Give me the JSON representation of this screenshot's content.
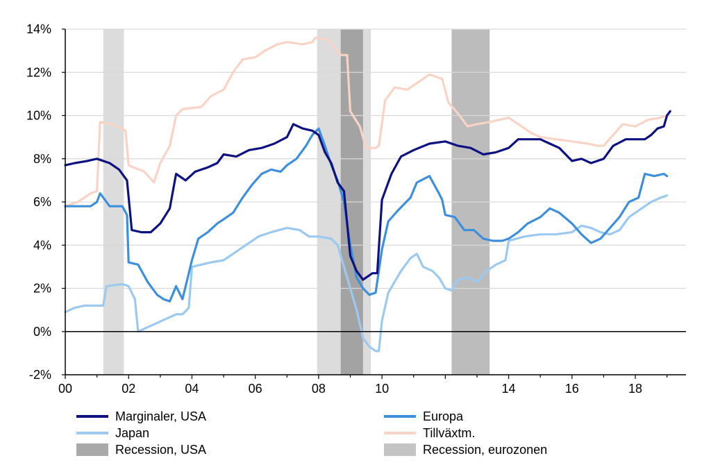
{
  "chart_data": {
    "type": "line",
    "title": "",
    "xlabel": "",
    "ylabel": "",
    "xlim": [
      2000,
      2019.6
    ],
    "ylim": [
      -2,
      14
    ],
    "x_ticks": [
      {
        "value": 2000,
        "label": "00"
      },
      {
        "value": 2002,
        "label": "02"
      },
      {
        "value": 2004,
        "label": "04"
      },
      {
        "value": 2006,
        "label": "06"
      },
      {
        "value": 2008,
        "label": "08"
      },
      {
        "value": 2010,
        "label": "10"
      },
      {
        "value": 2014,
        "label": "14"
      },
      {
        "value": 2016,
        "label": "16"
      },
      {
        "value": 2018,
        "label": "18"
      }
    ],
    "y_ticks": [
      {
        "value": -2,
        "label": "-2%"
      },
      {
        "value": 0,
        "label": "0%"
      },
      {
        "value": 2,
        "label": "2%"
      },
      {
        "value": 4,
        "label": "4%"
      },
      {
        "value": 6,
        "label": "6%"
      },
      {
        "value": 8,
        "label": "8%"
      },
      {
        "value": 10,
        "label": "10%"
      },
      {
        "value": 12,
        "label": "12%"
      },
      {
        "value": 14,
        "label": "14%"
      }
    ],
    "grid": true,
    "zero_line": true,
    "legend_position": "bottom",
    "recessions": [
      {
        "type": "usa",
        "start": 2001.2,
        "end": 2001.85
      },
      {
        "type": "usa",
        "start": 2007.95,
        "end": 2009.65
      },
      {
        "type": "euro",
        "start": 2008.7,
        "end": 2009.4
      },
      {
        "type": "euro",
        "start": 2012.2,
        "end": 2013.4
      }
    ],
    "recession_colors": {
      "usa": "#dcdcdc",
      "euro": "#bcbcbc",
      "overlap": "#a3a3a3"
    },
    "series": [
      {
        "name": "Tillväxtm.",
        "color": "#f9d3c5",
        "points": [
          [
            2000,
            5.8
          ],
          [
            2000.4,
            6.0
          ],
          [
            2000.8,
            6.4
          ],
          [
            2001.0,
            6.5
          ],
          [
            2001.1,
            9.7
          ],
          [
            2001.5,
            9.6
          ],
          [
            2001.9,
            9.3
          ],
          [
            2002.0,
            7.7
          ],
          [
            2002.5,
            7.4
          ],
          [
            2002.8,
            6.9
          ],
          [
            2003.0,
            7.8
          ],
          [
            2003.3,
            8.6
          ],
          [
            2003.5,
            10.0
          ],
          [
            2003.7,
            10.3
          ],
          [
            2004.3,
            10.4
          ],
          [
            2004.6,
            10.9
          ],
          [
            2005.0,
            11.2
          ],
          [
            2005.3,
            12.0
          ],
          [
            2005.6,
            12.6
          ],
          [
            2006.0,
            12.7
          ],
          [
            2006.3,
            13.0
          ],
          [
            2006.7,
            13.3
          ],
          [
            2007.0,
            13.4
          ],
          [
            2007.5,
            13.3
          ],
          [
            2007.8,
            13.4
          ],
          [
            2007.9,
            13.6
          ],
          [
            2008.3,
            13.5
          ],
          [
            2008.7,
            12.8
          ],
          [
            2008.9,
            12.8
          ],
          [
            2009.0,
            10.2
          ],
          [
            2009.3,
            9.5
          ],
          [
            2009.5,
            8.5
          ],
          [
            2009.8,
            8.5
          ],
          [
            2009.9,
            8.6
          ],
          [
            2010.1,
            10.7
          ],
          [
            2010.4,
            11.3
          ],
          [
            2010.8,
            11.2
          ],
          [
            2011.2,
            11.6
          ],
          [
            2011.5,
            11.9
          ],
          [
            2011.9,
            11.7
          ],
          [
            2012.1,
            10.6
          ],
          [
            2012.4,
            10.1
          ],
          [
            2012.7,
            9.5
          ],
          [
            2013.0,
            9.6
          ],
          [
            2013.4,
            9.7
          ],
          [
            2013.7,
            9.8
          ],
          [
            2014.0,
            9.9
          ],
          [
            2014.3,
            9.6
          ],
          [
            2014.7,
            9.2
          ],
          [
            2015.0,
            9.0
          ],
          [
            2015.5,
            8.9
          ],
          [
            2016.0,
            8.8
          ],
          [
            2016.5,
            8.7
          ],
          [
            2016.8,
            8.6
          ],
          [
            2017.0,
            8.6
          ],
          [
            2017.3,
            9.1
          ],
          [
            2017.6,
            9.6
          ],
          [
            2018.0,
            9.5
          ],
          [
            2018.4,
            9.8
          ],
          [
            2018.8,
            9.9
          ],
          [
            2019.0,
            10.0
          ]
        ]
      },
      {
        "name": "Japan",
        "color": "#9cc9ef",
        "points": [
          [
            2000,
            0.9
          ],
          [
            2000.3,
            1.1
          ],
          [
            2000.6,
            1.2
          ],
          [
            2001.0,
            1.2
          ],
          [
            2001.2,
            1.2
          ],
          [
            2001.3,
            2.1
          ],
          [
            2001.8,
            2.2
          ],
          [
            2002.0,
            2.1
          ],
          [
            2002.2,
            1.5
          ],
          [
            2002.3,
            0.0
          ],
          [
            2002.6,
            0.2
          ],
          [
            2002.9,
            0.4
          ],
          [
            2003.2,
            0.6
          ],
          [
            2003.5,
            0.8
          ],
          [
            2003.7,
            0.8
          ],
          [
            2003.9,
            1.1
          ],
          [
            2004.0,
            3.0
          ],
          [
            2004.3,
            3.1
          ],
          [
            2004.6,
            3.2
          ],
          [
            2005.0,
            3.3
          ],
          [
            2005.4,
            3.7
          ],
          [
            2005.8,
            4.1
          ],
          [
            2006.1,
            4.4
          ],
          [
            2006.5,
            4.6
          ],
          [
            2007.0,
            4.8
          ],
          [
            2007.4,
            4.7
          ],
          [
            2007.7,
            4.4
          ],
          [
            2008.0,
            4.4
          ],
          [
            2008.4,
            4.3
          ],
          [
            2008.6,
            4.0
          ],
          [
            2009.0,
            2.0
          ],
          [
            2009.2,
            1.0
          ],
          [
            2009.4,
            -0.3
          ],
          [
            2009.6,
            -0.7
          ],
          [
            2009.8,
            -0.9
          ],
          [
            2009.9,
            -0.9
          ],
          [
            2010.0,
            0.5
          ],
          [
            2010.2,
            1.8
          ],
          [
            2010.6,
            2.8
          ],
          [
            2010.9,
            3.4
          ],
          [
            2011.1,
            3.6
          ],
          [
            2011.3,
            3.0
          ],
          [
            2011.6,
            2.8
          ],
          [
            2011.8,
            2.5
          ],
          [
            2012.0,
            2.0
          ],
          [
            2012.2,
            1.9
          ],
          [
            2012.4,
            2.4
          ],
          [
            2012.7,
            2.5
          ],
          [
            2013.0,
            2.3
          ],
          [
            2013.3,
            2.8
          ],
          [
            2013.6,
            3.1
          ],
          [
            2013.9,
            3.3
          ],
          [
            2014.0,
            4.2
          ],
          [
            2014.5,
            4.4
          ],
          [
            2015.0,
            4.5
          ],
          [
            2015.5,
            4.5
          ],
          [
            2016.0,
            4.6
          ],
          [
            2016.3,
            4.9
          ],
          [
            2016.6,
            4.8
          ],
          [
            2016.9,
            4.6
          ],
          [
            2017.2,
            4.5
          ],
          [
            2017.5,
            4.7
          ],
          [
            2017.8,
            5.3
          ],
          [
            2018.2,
            5.7
          ],
          [
            2018.5,
            6.0
          ],
          [
            2018.8,
            6.2
          ],
          [
            2019.0,
            6.3
          ]
        ]
      },
      {
        "name": "Europa",
        "color": "#3d8fdc",
        "points": [
          [
            2000,
            5.8
          ],
          [
            2000.4,
            5.8
          ],
          [
            2000.8,
            5.8
          ],
          [
            2001.0,
            6.0
          ],
          [
            2001.1,
            6.4
          ],
          [
            2001.4,
            5.8
          ],
          [
            2001.8,
            5.8
          ],
          [
            2001.95,
            5.4
          ],
          [
            2002.0,
            3.2
          ],
          [
            2002.3,
            3.1
          ],
          [
            2002.6,
            2.3
          ],
          [
            2002.9,
            1.7
          ],
          [
            2003.1,
            1.5
          ],
          [
            2003.3,
            1.4
          ],
          [
            2003.5,
            2.1
          ],
          [
            2003.7,
            1.5
          ],
          [
            2003.9,
            2.7
          ],
          [
            2004.0,
            3.3
          ],
          [
            2004.2,
            4.3
          ],
          [
            2004.5,
            4.6
          ],
          [
            2004.8,
            5.0
          ],
          [
            2005.0,
            5.2
          ],
          [
            2005.3,
            5.5
          ],
          [
            2005.6,
            6.2
          ],
          [
            2005.9,
            6.8
          ],
          [
            2006.2,
            7.3
          ],
          [
            2006.5,
            7.5
          ],
          [
            2006.8,
            7.4
          ],
          [
            2007.0,
            7.7
          ],
          [
            2007.3,
            8.0
          ],
          [
            2007.6,
            8.6
          ],
          [
            2007.8,
            9.1
          ],
          [
            2008.0,
            9.4
          ],
          [
            2008.2,
            8.6
          ],
          [
            2008.4,
            7.7
          ],
          [
            2008.6,
            7.0
          ],
          [
            2008.8,
            6.0
          ],
          [
            2009.0,
            4.0
          ],
          [
            2009.2,
            2.5
          ],
          [
            2009.4,
            2.0
          ],
          [
            2009.6,
            1.7
          ],
          [
            2009.8,
            1.8
          ],
          [
            2010.0,
            3.8
          ],
          [
            2010.2,
            5.1
          ],
          [
            2010.5,
            5.6
          ],
          [
            2010.9,
            6.2
          ],
          [
            2011.1,
            6.9
          ],
          [
            2011.5,
            7.2
          ],
          [
            2011.8,
            6.4
          ],
          [
            2011.9,
            6.1
          ],
          [
            2012.0,
            5.4
          ],
          [
            2012.3,
            5.3
          ],
          [
            2012.6,
            4.7
          ],
          [
            2012.9,
            4.7
          ],
          [
            2013.2,
            4.3
          ],
          [
            2013.5,
            4.2
          ],
          [
            2013.8,
            4.2
          ],
          [
            2014.0,
            4.3
          ],
          [
            2014.3,
            4.6
          ],
          [
            2014.6,
            5.0
          ],
          [
            2015.0,
            5.3
          ],
          [
            2015.3,
            5.7
          ],
          [
            2015.6,
            5.5
          ],
          [
            2016.0,
            5.0
          ],
          [
            2016.3,
            4.5
          ],
          [
            2016.6,
            4.1
          ],
          [
            2016.9,
            4.3
          ],
          [
            2017.2,
            4.8
          ],
          [
            2017.5,
            5.3
          ],
          [
            2017.8,
            6.0
          ],
          [
            2018.1,
            6.2
          ],
          [
            2018.3,
            7.3
          ],
          [
            2018.6,
            7.2
          ],
          [
            2018.9,
            7.3
          ],
          [
            2019.0,
            7.2
          ]
        ]
      },
      {
        "name": "Marginaler, USA",
        "color": "#0d1280",
        "points": [
          [
            2000,
            7.7
          ],
          [
            2000.3,
            7.8
          ],
          [
            2000.7,
            7.9
          ],
          [
            2001.0,
            8.0
          ],
          [
            2001.4,
            7.8
          ],
          [
            2001.7,
            7.5
          ],
          [
            2001.95,
            7.0
          ],
          [
            2002.1,
            4.7
          ],
          [
            2002.4,
            4.6
          ],
          [
            2002.7,
            4.6
          ],
          [
            2003.0,
            5.0
          ],
          [
            2003.3,
            5.7
          ],
          [
            2003.5,
            7.3
          ],
          [
            2003.8,
            7.0
          ],
          [
            2004.1,
            7.4
          ],
          [
            2004.5,
            7.6
          ],
          [
            2004.8,
            7.8
          ],
          [
            2005.0,
            8.2
          ],
          [
            2005.4,
            8.1
          ],
          [
            2005.8,
            8.4
          ],
          [
            2006.2,
            8.5
          ],
          [
            2006.6,
            8.7
          ],
          [
            2007.0,
            9.0
          ],
          [
            2007.2,
            9.6
          ],
          [
            2007.5,
            9.4
          ],
          [
            2007.8,
            9.3
          ],
          [
            2008.0,
            9.1
          ],
          [
            2008.2,
            8.3
          ],
          [
            2008.4,
            7.8
          ],
          [
            2008.6,
            6.9
          ],
          [
            2008.8,
            6.5
          ],
          [
            2009.0,
            3.5
          ],
          [
            2009.2,
            2.8
          ],
          [
            2009.4,
            2.4
          ],
          [
            2009.7,
            2.7
          ],
          [
            2009.85,
            2.7
          ],
          [
            2010.0,
            6.1
          ],
          [
            2010.3,
            7.3
          ],
          [
            2010.6,
            8.1
          ],
          [
            2011.0,
            8.4
          ],
          [
            2011.5,
            8.7
          ],
          [
            2012.0,
            8.8
          ],
          [
            2012.4,
            8.6
          ],
          [
            2012.8,
            8.5
          ],
          [
            2013.2,
            8.2
          ],
          [
            2013.6,
            8.3
          ],
          [
            2014.0,
            8.5
          ],
          [
            2014.3,
            8.9
          ],
          [
            2014.7,
            8.9
          ],
          [
            2015.0,
            8.9
          ],
          [
            2015.3,
            8.7
          ],
          [
            2015.6,
            8.5
          ],
          [
            2016.0,
            7.9
          ],
          [
            2016.3,
            8.0
          ],
          [
            2016.6,
            7.8
          ],
          [
            2017.0,
            8.0
          ],
          [
            2017.3,
            8.6
          ],
          [
            2017.7,
            8.9
          ],
          [
            2018.0,
            8.9
          ],
          [
            2018.3,
            8.9
          ],
          [
            2018.5,
            9.1
          ],
          [
            2018.7,
            9.4
          ],
          [
            2018.9,
            9.5
          ],
          [
            2019.0,
            10.0
          ],
          [
            2019.1,
            10.2
          ]
        ]
      }
    ],
    "legend": [
      {
        "label": "Marginaler, USA",
        "kind": "line",
        "color": "#0d1280",
        "column": 0
      },
      {
        "label": "Europa",
        "kind": "line",
        "color": "#3d8fdc",
        "column": 1
      },
      {
        "label": "Japan",
        "kind": "line",
        "color": "#9cc9ef",
        "column": 0
      },
      {
        "label": "Tillväxtm.",
        "kind": "line",
        "color": "#f9d3c5",
        "column": 1
      },
      {
        "label": "Recession, USA",
        "kind": "patch",
        "color": "#a9a9a9",
        "column": 0
      },
      {
        "label": "Recession, eurozonen",
        "kind": "patch",
        "color": "#c4c4c4",
        "column": 1
      }
    ]
  }
}
